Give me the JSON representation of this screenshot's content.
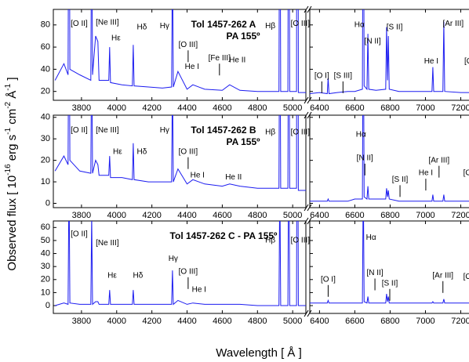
{
  "y_label_parts": [
    "Observed flux [ 10",
    "-16",
    " erg s",
    "-1",
    " cm",
    "-2",
    " Å",
    "-1",
    " ]"
  ],
  "x_label": "Wavelength [ Å ]",
  "chart_data": [
    {
      "type": "line",
      "title": "Tol 1457-262 A",
      "subtitle": "PA 155º",
      "color": "#1c1cf0",
      "ylim": [
        12,
        94
      ],
      "yticks": [
        20,
        40,
        60,
        80
      ],
      "segments": [
        {
          "xlim": [
            3640,
            5075
          ],
          "xticks": [
            3800,
            4000,
            4200,
            4400,
            4600,
            4800,
            5000
          ],
          "x": [
            3650,
            3700,
            3724,
            3729,
            3734,
            3790,
            3853,
            3858,
            3863,
            3880,
            3893,
            3900,
            3955,
            3960,
            3965,
            4030,
            4089,
            4094,
            4099,
            4180,
            4260,
            4312,
            4317,
            4322,
            4348,
            4400,
            4433,
            4500,
            4600,
            4642,
            4700,
            4800,
            4880,
            4922,
            4927,
            4932,
            4973,
            4978,
            4983,
            5022,
            5027,
            5032,
            5075
          ],
          "values": [
            30,
            45,
            35,
            300,
            40,
            35,
            30,
            200,
            35,
            70,
            65,
            30,
            30,
            60,
            28,
            26,
            25,
            62,
            25,
            24,
            23,
            24,
            150,
            24,
            38,
            22,
            26,
            22,
            21,
            26,
            21,
            20,
            20,
            20,
            300,
            20,
            20,
            400,
            20,
            20,
            900,
            19,
            19
          ]
        },
        {
          "xlim": [
            6345,
            7300
          ],
          "xticks": [
            6400,
            6600,
            6800,
            7000,
            7200
          ],
          "x": [
            6345,
            6400,
            6444,
            6449,
            6454,
            6500,
            6560,
            6600,
            6643,
            6648,
            6653,
            6669,
            6674,
            6679,
            6720,
            6775,
            6780,
            6785,
            6790,
            6795,
            6850,
            6950,
            7000,
            7037,
            7042,
            7047,
            7099,
            7104,
            7109,
            7200,
            7258,
            7263,
            7268,
            7300
          ],
          "values": [
            18,
            19,
            18,
            32,
            18,
            19,
            20,
            20,
            22,
            300,
            25,
            22,
            72,
            22,
            21,
            22,
            78,
            30,
            70,
            22,
            20,
            20,
            20,
            20,
            42,
            20,
            20,
            83,
            20,
            19,
            19,
            40,
            18,
            17
          ]
        }
      ],
      "annotations": [
        {
          "text": "[O II]",
          "x": 3787,
          "y": 81
        },
        {
          "text": "[Ne III]",
          "x": 3947,
          "y": 82
        },
        {
          "text": "Hε",
          "x": 3996,
          "y": 68
        },
        {
          "text": "Hδ",
          "x": 4143,
          "y": 78
        },
        {
          "text": "Hγ",
          "x": 4272,
          "y": 79
        },
        {
          "text": "[O III]",
          "x": 4406,
          "y": 62,
          "marker": true
        },
        {
          "text": "He I",
          "x": 4428,
          "y": 42
        },
        {
          "text": "[Fe III]",
          "x": 4584,
          "y": 50,
          "marker": true
        },
        {
          "text": "He II",
          "x": 4686,
          "y": 48
        },
        {
          "text": "Hβ",
          "x": 4873,
          "y": 79
        },
        {
          "text": "[O III]",
          "x": 5043,
          "y": 81
        },
        {
          "text": "[O I]",
          "x": 6413,
          "y": 34,
          "marker": true
        },
        {
          "text": "[S III]",
          "x": 6533,
          "y": 34,
          "marker": true
        },
        {
          "text": "Hα",
          "x": 6626,
          "y": 80
        },
        {
          "text": "[N II]",
          "x": 6701,
          "y": 65
        },
        {
          "text": "[S II]",
          "x": 6825,
          "y": 78
        },
        {
          "text": "He I",
          "x": 7033,
          "y": 47
        },
        {
          "text": "[Ar III]",
          "x": 7157,
          "y": 81
        },
        {
          "text": "[O II]",
          "x": 7268,
          "y": 47
        }
      ]
    },
    {
      "type": "line",
      "title": "Tol 1457-262 B",
      "subtitle": "PA 155º",
      "color": "#1c1cf0",
      "ylim": [
        -2,
        41
      ],
      "yticks": [
        0,
        10,
        20,
        30,
        40
      ],
      "segments": [
        {
          "xlim": [
            3640,
            5075
          ],
          "xticks": [
            3800,
            4000,
            4200,
            4400,
            4600,
            4800,
            5000
          ],
          "x": [
            3650,
            3700,
            3724,
            3729,
            3734,
            3790,
            3853,
            3858,
            3863,
            3880,
            3893,
            3900,
            3955,
            3960,
            3965,
            4030,
            4089,
            4094,
            4099,
            4180,
            4260,
            4312,
            4317,
            4322,
            4348,
            4400,
            4433,
            4500,
            4600,
            4642,
            4700,
            4800,
            4880,
            4922,
            4927,
            4932,
            4973,
            4978,
            4983,
            5022,
            5027,
            5032,
            5075
          ],
          "values": [
            15,
            22,
            18,
            120,
            20,
            15,
            14,
            80,
            14,
            20,
            18,
            13,
            13,
            22,
            12,
            12,
            11,
            28,
            11,
            10,
            10,
            10,
            60,
            10,
            16,
            9,
            11,
            9,
            8,
            9,
            8,
            7,
            7,
            7,
            120,
            7,
            7,
            150,
            7,
            7,
            400,
            6,
            6
          ]
        },
        {
          "xlim": [
            6345,
            7300
          ],
          "xticks": [
            6400,
            6600,
            6800,
            7000,
            7200
          ],
          "x": [
            6345,
            6400,
            6444,
            6449,
            6454,
            6500,
            6560,
            6600,
            6643,
            6648,
            6653,
            6669,
            6674,
            6679,
            6720,
            6775,
            6780,
            6785,
            6790,
            6795,
            6850,
            6950,
            7000,
            7037,
            7042,
            7047,
            7099,
            7104,
            7109,
            7200,
            7258,
            7263,
            7268,
            7300
          ],
          "values": [
            1,
            1,
            1,
            2,
            1,
            1,
            1,
            2,
            2,
            100,
            3,
            2,
            8,
            2,
            2,
            2,
            7,
            3,
            6,
            2,
            1,
            1,
            1,
            1,
            4,
            1,
            1,
            4,
            1,
            1,
            1,
            3,
            1,
            1
          ]
        }
      ],
      "annotations": [
        {
          "text": "[O II]",
          "x": 3787,
          "y": 34
        },
        {
          "text": "[Ne III]",
          "x": 3947,
          "y": 34
        },
        {
          "text": "Hε",
          "x": 4005,
          "y": 24
        },
        {
          "text": "Hδ",
          "x": 4143,
          "y": 24
        },
        {
          "text": "Hγ",
          "x": 4272,
          "y": 34
        },
        {
          "text": "[O III]",
          "x": 4406,
          "y": 24,
          "marker": true
        },
        {
          "text": "He I",
          "x": 4459,
          "y": 13
        },
        {
          "text": "He II",
          "x": 4664,
          "y": 12
        },
        {
          "text": "Hβ",
          "x": 4873,
          "y": 33
        },
        {
          "text": "[O III]",
          "x": 5043,
          "y": 33
        },
        {
          "text": "Hα",
          "x": 6635,
          "y": 32
        },
        {
          "text": "[N II]",
          "x": 6657,
          "y": 21,
          "marker": true
        },
        {
          "text": "[S II]",
          "x": 6856,
          "y": 11,
          "marker": true
        },
        {
          "text": "He I",
          "x": 7002,
          "y": 14,
          "marker": true
        },
        {
          "text": "[Ar III]",
          "x": 7077,
          "y": 20,
          "marker": true
        },
        {
          "text": "[O II]",
          "x": 7262,
          "y": 14,
          "marker": true
        }
      ]
    },
    {
      "type": "line",
      "title": "Tol 1457-262 C - PA 155º",
      "color": "#1c1cf0",
      "ylim": [
        -6,
        65
      ],
      "yticks": [
        0,
        10,
        20,
        30,
        40,
        50,
        60
      ],
      "segments": [
        {
          "xlim": [
            3640,
            5075
          ],
          "xticks": [
            3800,
            4000,
            4200,
            4400,
            4600,
            4800,
            5000
          ],
          "x": [
            3650,
            3700,
            3724,
            3729,
            3734,
            3790,
            3853,
            3858,
            3863,
            3880,
            3893,
            3900,
            3955,
            3960,
            3965,
            4030,
            4089,
            4094,
            4099,
            4180,
            4260,
            4312,
            4317,
            4322,
            4348,
            4400,
            4433,
            4500,
            4600,
            4642,
            4700,
            4800,
            4880,
            4922,
            4927,
            4932,
            4973,
            4978,
            4983,
            5022,
            5027,
            5032,
            5075
          ],
          "values": [
            0,
            2,
            1,
            100,
            2,
            1,
            1,
            70,
            1,
            3,
            3,
            1,
            1,
            12,
            1,
            1,
            1,
            12,
            1,
            1,
            1,
            1,
            27,
            1,
            4,
            1,
            2,
            1,
            1,
            1,
            1,
            0,
            0,
            0,
            100,
            0,
            0,
            150,
            0,
            0,
            300,
            0,
            0
          ]
        },
        {
          "xlim": [
            6345,
            7300
          ],
          "xticks": [
            6400,
            6600,
            6800,
            7000,
            7200
          ],
          "x": [
            6345,
            6400,
            6444,
            6449,
            6454,
            6500,
            6560,
            6600,
            6643,
            6648,
            6653,
            6669,
            6674,
            6679,
            6720,
            6775,
            6780,
            6785,
            6790,
            6795,
            6850,
            6950,
            7000,
            7037,
            7042,
            7047,
            7099,
            7104,
            7109,
            7200,
            7258,
            7263,
            7268,
            7300
          ],
          "values": [
            2,
            2,
            2,
            4,
            2,
            2,
            2,
            2,
            2,
            100,
            3,
            2,
            7,
            2,
            2,
            2,
            9,
            3,
            7,
            2,
            2,
            2,
            2,
            2,
            3,
            2,
            2,
            5,
            2,
            2,
            2,
            5,
            2,
            2
          ]
        }
      ],
      "annotations": [
        {
          "text": "[O II]",
          "x": 3787,
          "y": 55
        },
        {
          "text": "[Ne III]",
          "x": 3947,
          "y": 48
        },
        {
          "text": "Hε",
          "x": 3974,
          "y": 23
        },
        {
          "text": "Hδ",
          "x": 4121,
          "y": 23
        },
        {
          "text": "Hγ",
          "x": 4321,
          "y": 36
        },
        {
          "text": "[O III]",
          "x": 4406,
          "y": 26,
          "marker": true
        },
        {
          "text": "He I",
          "x": 4468,
          "y": 12
        },
        {
          "text": "Hβ",
          "x": 4873,
          "y": 50
        },
        {
          "text": "[O III]",
          "x": 5043,
          "y": 50
        },
        {
          "text": "[O I]",
          "x": 6449,
          "y": 20,
          "marker": true
        },
        {
          "text": "Hα",
          "x": 6692,
          "y": 52
        },
        {
          "text": "[N II]",
          "x": 6714,
          "y": 25,
          "marker": true
        },
        {
          "text": "[S II]",
          "x": 6798,
          "y": 17,
          "marker": true
        },
        {
          "text": "[Ar III]",
          "x": 7099,
          "y": 23,
          "marker": true
        },
        {
          "text": "[O II]",
          "x": 7262,
          "y": 22,
          "marker": true
        }
      ]
    }
  ]
}
